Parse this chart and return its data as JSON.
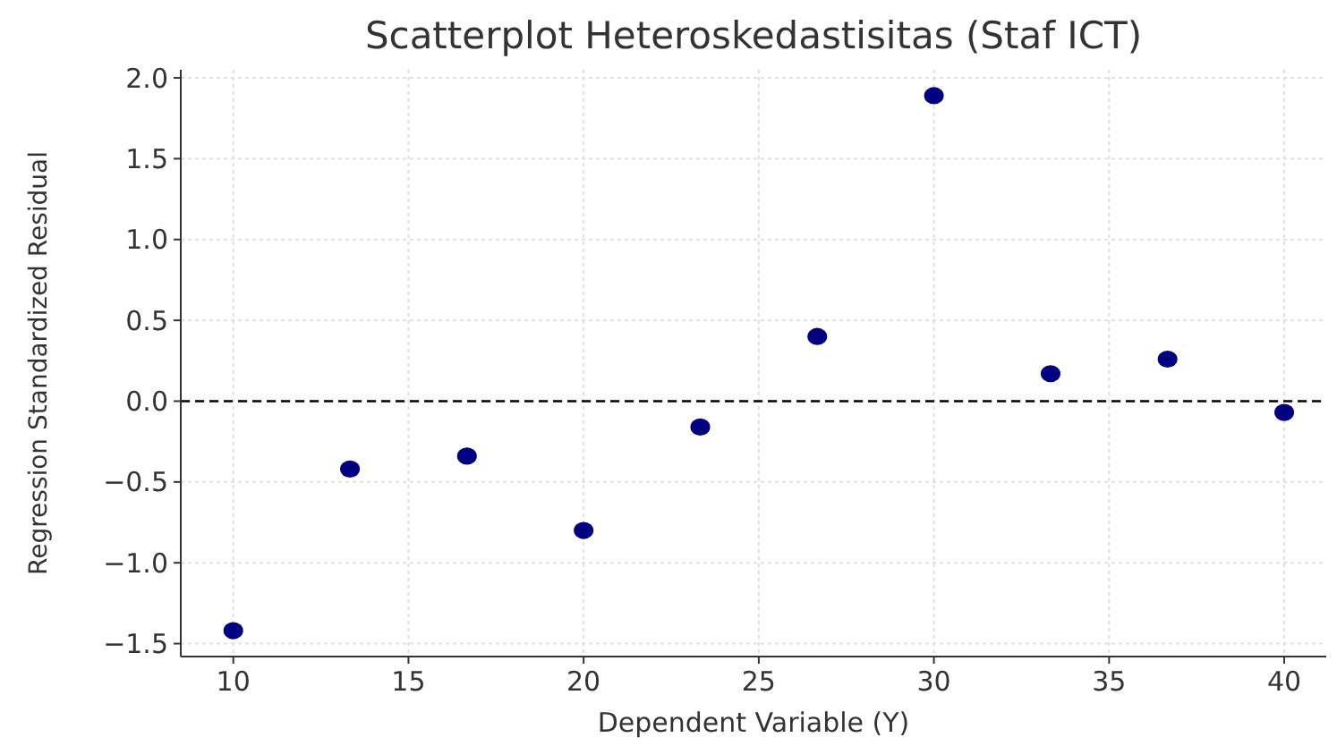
{
  "chart_data": {
    "type": "scatter",
    "title": "Scatterplot Heteroskedastisitas (Staf ICT)",
    "xlabel": "Dependent Variable (Y)",
    "ylabel": "Regression Standardized Residual",
    "x": [
      10,
      13.33,
      16.67,
      20,
      23.33,
      26.67,
      30,
      33.33,
      36.67,
      40
    ],
    "series": [
      {
        "color": "#000080",
        "values": [
          -1.42,
          -0.42,
          -0.34,
          -0.8,
          -0.16,
          0.4,
          1.89,
          0.17,
          0.26,
          -0.07
        ]
      }
    ],
    "xlim": [
      8.5,
      41.2
    ],
    "ylim": [
      -1.58,
      2.05
    ],
    "xticks": [
      10,
      15,
      20,
      25,
      30,
      35,
      40
    ],
    "yticks": [
      {
        "value": -1.5,
        "label": "−1.5"
      },
      {
        "value": -1,
        "label": "−1.0"
      },
      {
        "value": -0.5,
        "label": "−0.5"
      },
      {
        "value": 0,
        "label": "0.0"
      },
      {
        "value": 0.5,
        "label": "0.5"
      },
      {
        "value": 1,
        "label": "1.0"
      },
      {
        "value": 1.5,
        "label": "1.5"
      },
      {
        "value": 2,
        "label": "2.0"
      }
    ],
    "grid": true,
    "marker": "circle",
    "ref_lines": [
      {
        "axis": "y",
        "value": 0,
        "color": "#000000",
        "line_style": "dashed"
      }
    ]
  }
}
